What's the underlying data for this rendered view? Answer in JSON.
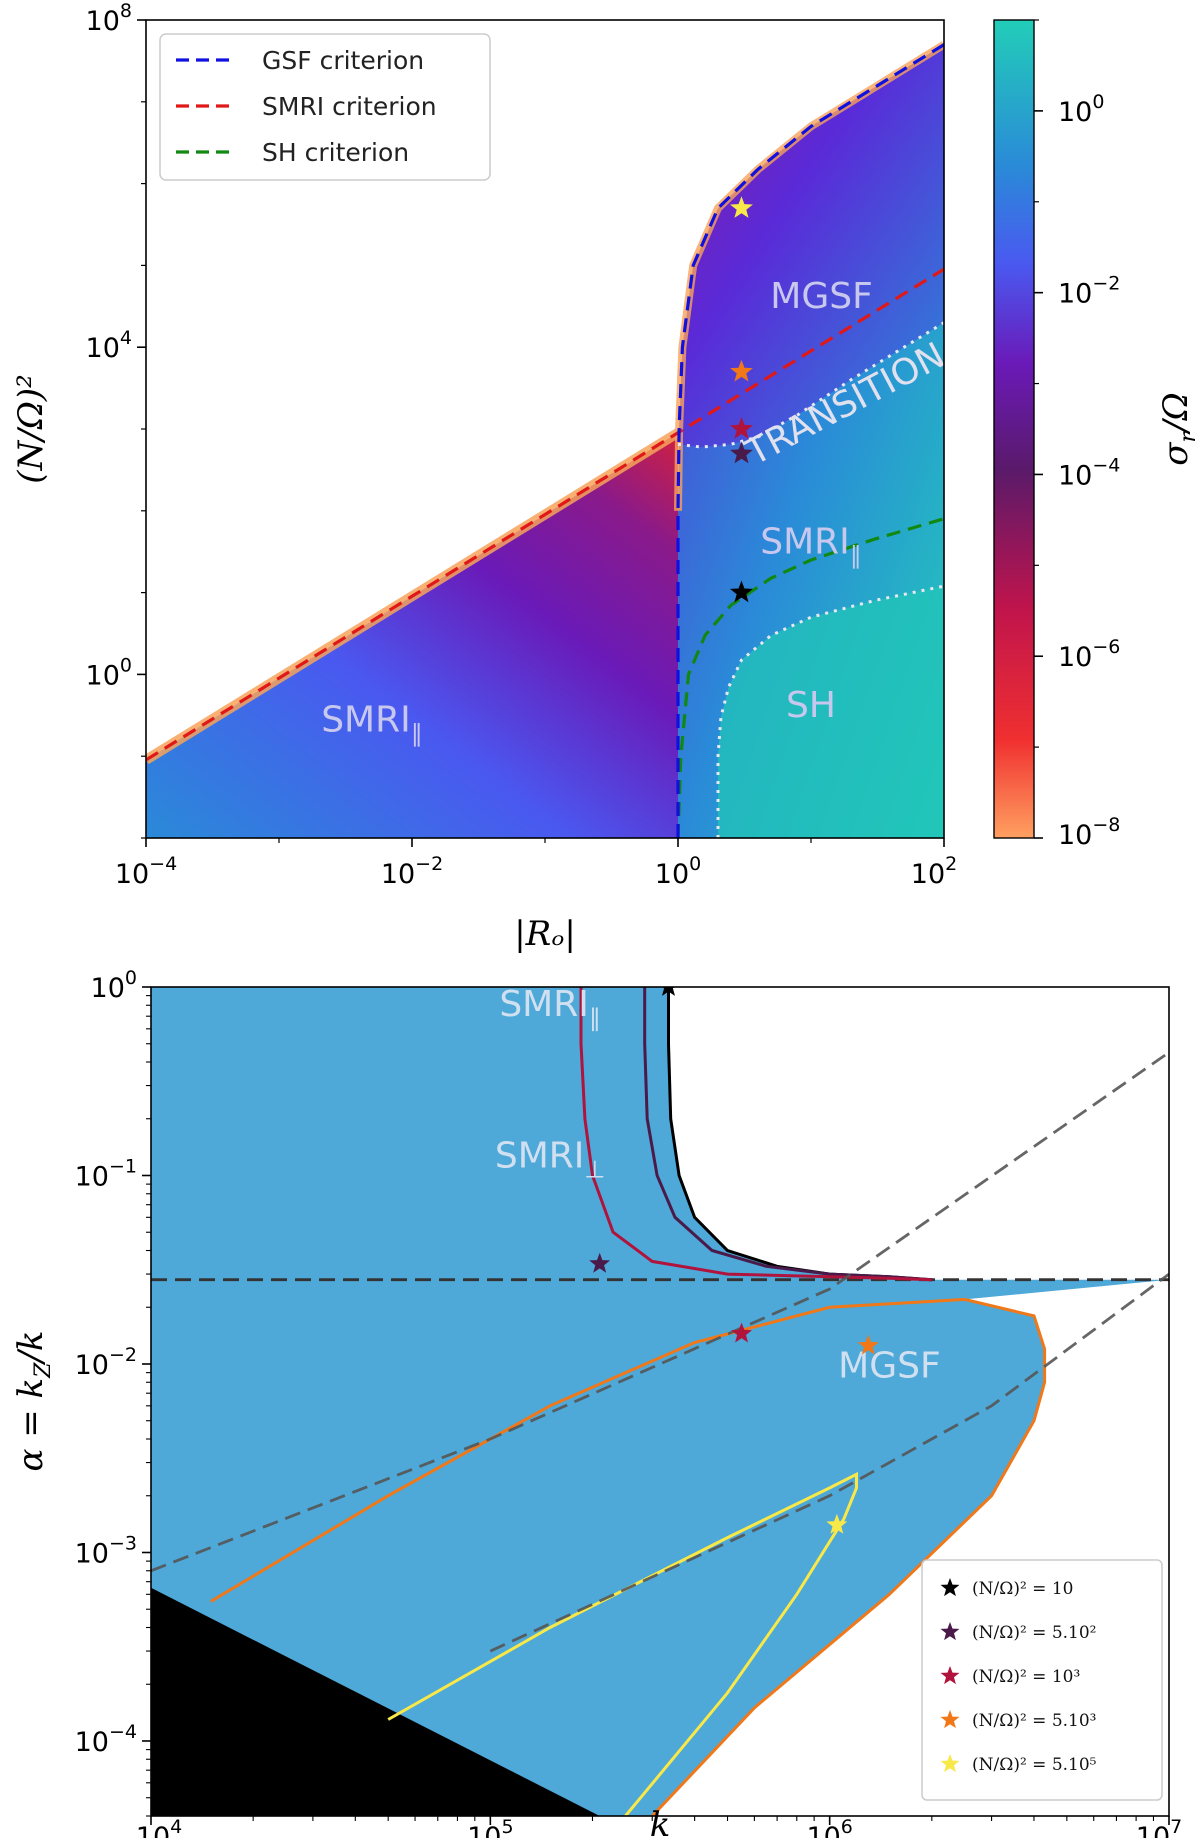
{
  "colors": {
    "plasma_low": "#f7a35a",
    "plasma_mid": "#5b1a8a",
    "plasma_high": "#3d7ff0",
    "teal": "#20c4b8",
    "panel_blue": "#4ea8d8",
    "gsf": "#1010e0",
    "smri": "#e01818",
    "sh": "#118811",
    "guide": "#555555",
    "black_region": "#000000",
    "star_10": "#000000",
    "star_500": "#4a1a4a",
    "star_1000": "#b0143c",
    "star_5000": "#f07818",
    "star_500000": "#f8e848"
  },
  "chart_data": [
    {
      "type": "heatmap",
      "title": "",
      "xlabel": "|R_o|",
      "xlabel_display": "|Rₒ|",
      "ylabel": "(N/Ω)^2",
      "ylabel_display": "(N/Ω)²",
      "xscale": "log",
      "yscale": "log",
      "xlim": [
        0.0001,
        100
      ],
      "ylim": [
        0.01,
        100000000
      ],
      "x_ticks": [
        {
          "value": 0.0001,
          "base": "10",
          "exp": "−4"
        },
        {
          "value": 0.01,
          "base": "10",
          "exp": "−2"
        },
        {
          "value": 1,
          "base": "10",
          "exp": "0"
        },
        {
          "value": 100,
          "base": "10",
          "exp": "2"
        }
      ],
      "y_ticks": [
        {
          "value": 1,
          "base": "10",
          "exp": "0"
        },
        {
          "value": 10000,
          "base": "10",
          "exp": "4"
        },
        {
          "value": 100000000,
          "base": "10",
          "exp": "8"
        }
      ],
      "colorbar": {
        "label": "σ_r/Ω",
        "label_display": "σ",
        "label_sub": "r",
        "label_rest": "/Ω",
        "scale": "log",
        "range": [
          1e-08,
          10.0
        ],
        "ticks": [
          {
            "value": 1,
            "base": "10",
            "exp": "0"
          },
          {
            "value": 0.01,
            "base": "10",
            "exp": "−2"
          },
          {
            "value": 0.0001,
            "base": "10",
            "exp": "−4"
          },
          {
            "value": 1e-06,
            "base": "10",
            "exp": "−6"
          },
          {
            "value": 1e-08,
            "base": "10",
            "exp": "−8"
          }
        ]
      },
      "legend": {
        "position": "top-left",
        "entries": [
          {
            "label": "GSF criterion",
            "color": "#1010e0",
            "style": "dashed"
          },
          {
            "label": "SMRI criterion",
            "color": "#e01818",
            "style": "dashed"
          },
          {
            "label": "SH criterion",
            "color": "#118811",
            "style": "dashed"
          }
        ]
      },
      "regions": [
        {
          "label": "MGSF",
          "x": 12,
          "y": 30000
        },
        {
          "label": "TRANSITION",
          "x": 20,
          "y": 1500
        },
        {
          "label": "SMRI",
          "sub": "∥",
          "x": 10,
          "y": 30
        },
        {
          "label": "SH",
          "x": 10,
          "y": 0.3
        },
        {
          "label": "SMRI",
          "sub": "∥",
          "x": 0.005,
          "y": 0.2
        }
      ],
      "series": [
        {
          "name": "GSF criterion",
          "x": [
            1,
            1,
            1.02,
            1.08,
            1.3,
            2,
            4,
            10,
            30,
            100
          ],
          "y": [
            0.01,
            100,
            1000,
            10000,
            100000,
            500000,
            1500000,
            5000000,
            15000000,
            50000000
          ]
        },
        {
          "name": "SMRI criterion",
          "x": [
            0.0001,
            0.001,
            0.01,
            0.1,
            1,
            3,
            10,
            30,
            100
          ],
          "y": [
            0.09,
            0.9,
            9,
            90,
            900,
            2700,
            9000,
            27000,
            90000
          ]
        },
        {
          "name": "SH criterion",
          "x": [
            1,
            1.05,
            1.2,
            1.6,
            2.5,
            5,
            10,
            30,
            100
          ],
          "y": [
            0.01,
            0.1,
            1,
            3,
            7,
            15,
            25,
            45,
            80
          ]
        },
        {
          "name": "transition boundary",
          "x": [
            1,
            1.5,
            2.5,
            4,
            8,
            20,
            50,
            100
          ],
          "y": [
            650,
            600,
            650,
            800,
            1500,
            4000,
            10000,
            20000
          ]
        },
        {
          "name": "SH boundary",
          "x": [
            2,
            2,
            2.1,
            2.4,
            3,
            5,
            10,
            30,
            100
          ],
          "y": [
            0.01,
            0.1,
            0.3,
            0.7,
            1.5,
            3,
            5,
            8,
            12
          ]
        }
      ],
      "points": [
        {
          "label": "(N/Ω)^2 = 10",
          "x": 3,
          "y": 10,
          "color": "#000000"
        },
        {
          "label": "(N/Ω)^2 = 5.10^2",
          "x": 3,
          "y": 500,
          "color": "#4a1a4a"
        },
        {
          "label": "(N/Ω)^2 = 10^3",
          "x": 3,
          "y": 1000,
          "color": "#b0143c"
        },
        {
          "label": "(N/Ω)^2 = 5.10^3",
          "x": 3,
          "y": 5000,
          "color": "#f07818"
        },
        {
          "label": "(N/Ω)^2 = 5.10^5",
          "x": 3,
          "y": 500000,
          "color": "#f8e848"
        }
      ]
    },
    {
      "type": "line",
      "title": "",
      "xlabel": "k",
      "ylabel": "α = k_Z/k",
      "ylabel_display": "α = k",
      "ylabel_sub": "Z",
      "ylabel_rest": "/k",
      "xscale": "log",
      "yscale": "log",
      "xlim": [
        10000,
        10000000
      ],
      "ylim": [
        4e-05,
        1
      ],
      "x_ticks": [
        {
          "value": 10000,
          "base": "10",
          "exp": "4"
        },
        {
          "value": 100000,
          "base": "10",
          "exp": "5"
        },
        {
          "value": 1000000,
          "base": "10",
          "exp": "6"
        },
        {
          "value": 10000000,
          "base": "10",
          "exp": "7"
        }
      ],
      "y_ticks": [
        {
          "value": 1,
          "base": "10",
          "exp": "0"
        },
        {
          "value": 0.1,
          "base": "10",
          "exp": "−1"
        },
        {
          "value": 0.01,
          "base": "10",
          "exp": "−2"
        },
        {
          "value": 0.001,
          "base": "10",
          "exp": "−3"
        },
        {
          "value": 0.0001,
          "base": "10",
          "exp": "−4"
        }
      ],
      "legend": {
        "position": "bottom-right",
        "entries": [
          {
            "label": "(N/Ω)² = 10",
            "color": "#000000",
            "marker": "star"
          },
          {
            "label": "(N/Ω)² = 5.10²",
            "color": "#4a1a4a",
            "marker": "star"
          },
          {
            "label": "(N/Ω)² = 10³",
            "color": "#b0143c",
            "marker": "star"
          },
          {
            "label": "(N/Ω)² = 5.10³",
            "color": "#f07818",
            "marker": "star"
          },
          {
            "label": "(N/Ω)² = 5.10⁵",
            "color": "#f8e848",
            "marker": "star"
          }
        ]
      },
      "regions": [
        {
          "label": "SMRI",
          "sub": "∥",
          "x": 150000,
          "y": 0.7
        },
        {
          "label": "SMRI",
          "sub": "⊥",
          "x": 150000,
          "y": 0.11
        },
        {
          "label": "MGSF",
          "x": 1500000,
          "y": 0.0085
        }
      ],
      "horizontal_line": {
        "y": 0.028
      },
      "series": [
        {
          "name": "(N/Ω)^2 = 10",
          "color": "#000000",
          "x": [
            335000,
            335000,
            340000,
            360000,
            400000,
            500000,
            700000,
            1000000,
            1500000,
            2000000
          ],
          "y": [
            1,
            0.5,
            0.2,
            0.1,
            0.06,
            0.04,
            0.033,
            0.03,
            0.029,
            0.028
          ]
        },
        {
          "name": "(N/Ω)^2 = 5.10^2",
          "color": "#4a1a4a",
          "x": [
            285000,
            285000,
            290000,
            310000,
            350000,
            450000,
            650000,
            1000000,
            1500000,
            2000000
          ],
          "y": [
            1,
            0.5,
            0.2,
            0.1,
            0.06,
            0.04,
            0.033,
            0.03,
            0.029,
            0.028
          ]
        },
        {
          "name": "(N/Ω)^2 = 10^3",
          "color": "#b0143c",
          "x": [
            185000,
            185000,
            190000,
            200000,
            230000,
            300000,
            500000,
            1000000,
            1500000,
            2000000
          ],
          "y": [
            1,
            0.5,
            0.2,
            0.1,
            0.05,
            0.035,
            0.03,
            0.029,
            0.0285,
            0.028
          ]
        },
        {
          "name": "(N/Ω)^2 = 5.10^3",
          "color": "#f07818",
          "x": [
            15000,
            50000,
            150000,
            400000,
            1000000,
            2500000,
            4000000,
            4300000,
            4300000,
            4000000,
            3000000,
            1500000,
            600000,
            300000
          ],
          "y": [
            0.00055,
            0.002,
            0.006,
            0.013,
            0.02,
            0.022,
            0.018,
            0.012,
            0.008,
            0.005,
            0.002,
            0.0006,
            0.00015,
            4e-05
          ]
        },
        {
          "name": "(N/Ω)^2 = 5.10^5",
          "color": "#f8e848",
          "x": [
            50000,
            150000,
            500000,
            1000000,
            1200000,
            1200000,
            1100000,
            800000,
            500000,
            250000
          ],
          "y": [
            0.00013,
            0.0004,
            0.0012,
            0.0022,
            0.0026,
            0.0022,
            0.0015,
            0.0006,
            0.00018,
            4e-05
          ]
        },
        {
          "name": "guide upper",
          "color": "#555555",
          "x": [
            10000,
            100000,
            1000000,
            10000000
          ],
          "y": [
            0.0008,
            0.004,
            0.025,
            0.45
          ]
        },
        {
          "name": "guide lower",
          "color": "#555555",
          "x": [
            100000,
            1000000,
            3000000,
            10000000
          ],
          "y": [
            0.0003,
            0.002,
            0.006,
            0.03
          ]
        }
      ],
      "points": [
        {
          "label": "(N/Ω)^2 = 10",
          "x": 335000,
          "y": 1,
          "color": "#000000"
        },
        {
          "label": "(N/Ω)^2 = 5.10^2",
          "x": 210000,
          "y": 0.034,
          "color": "#4a1a4a"
        },
        {
          "label": "(N/Ω)^2 = 10^3",
          "x": 550000,
          "y": 0.0145,
          "color": "#b0143c"
        },
        {
          "label": "(N/Ω)^2 = 5.10^3",
          "x": 1300000,
          "y": 0.0125,
          "color": "#f07818"
        },
        {
          "label": "(N/Ω)^2 = 5.10^5",
          "x": 1050000,
          "y": 0.0014,
          "color": "#f8e848"
        }
      ]
    }
  ]
}
